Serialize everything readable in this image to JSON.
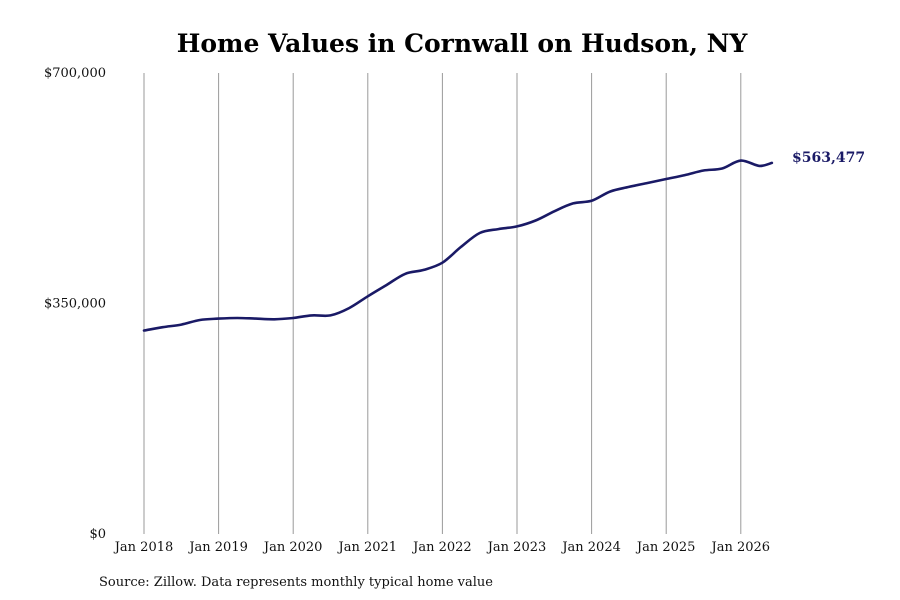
{
  "chart_data": {
    "type": "line",
    "title": "Home Values in Cornwall on Hudson, NY",
    "xlabel": "",
    "ylabel": "",
    "ylim": [
      0,
      700000
    ],
    "y_ticks": [
      {
        "value": 0,
        "label": "$0"
      },
      {
        "value": 350000,
        "label": "$350,000"
      },
      {
        "value": 700000,
        "label": "$700,000"
      }
    ],
    "x_ticks": [
      "Jan 2018",
      "Jan 2019",
      "Jan 2020",
      "Jan 2021",
      "Jan 2022",
      "Jan 2023",
      "Jan 2024",
      "Jan 2025",
      "Jan 2026"
    ],
    "x_range": [
      "2018-01",
      "2026-06"
    ],
    "vertical_grid": true,
    "line_color": "#1a1a66",
    "end_label": "$563,477",
    "source_note": "Source: Zillow. Data represents monthly typical home value",
    "series": [
      {
        "name": "",
        "x": [
          "2018-01",
          "2018-04",
          "2018-07",
          "2018-10",
          "2019-01",
          "2019-04",
          "2019-07",
          "2019-10",
          "2020-01",
          "2020-04",
          "2020-07",
          "2020-10",
          "2021-01",
          "2021-04",
          "2021-07",
          "2021-10",
          "2022-01",
          "2022-04",
          "2022-07",
          "2022-10",
          "2023-01",
          "2023-04",
          "2023-07",
          "2023-10",
          "2024-01",
          "2024-04",
          "2024-07",
          "2024-10",
          "2025-01",
          "2025-04",
          "2025-07",
          "2025-10",
          "2026-01",
          "2026-04",
          "2026-06"
        ],
        "values": [
          309000,
          314000,
          318000,
          325000,
          327000,
          328000,
          327000,
          326000,
          328000,
          332000,
          332000,
          343000,
          361000,
          378000,
          395000,
          401000,
          412000,
          436000,
          457000,
          463000,
          467000,
          476000,
          490000,
          502000,
          506000,
          520000,
          527000,
          533000,
          539000,
          545000,
          552000,
          555000,
          567000,
          559000,
          563477
        ]
      }
    ]
  }
}
